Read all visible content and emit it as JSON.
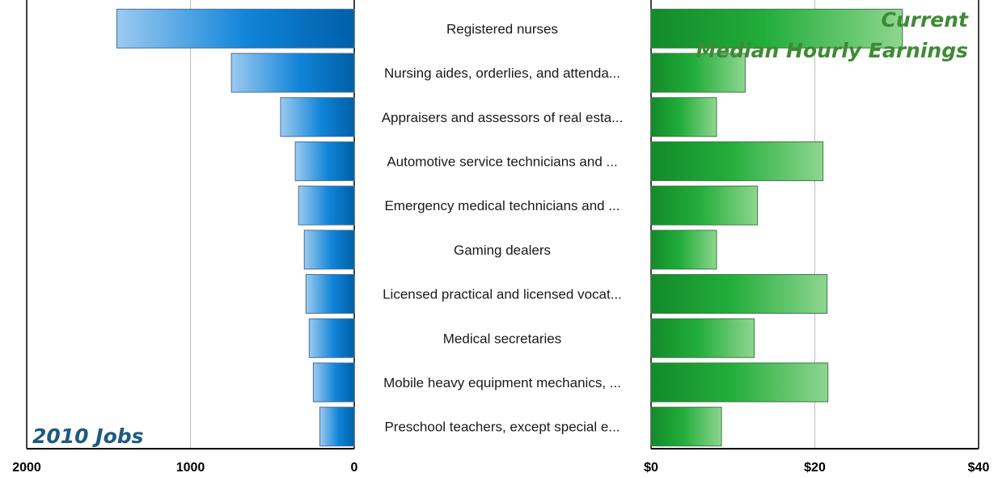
{
  "chart_data": [
    {
      "type": "bar",
      "orientation": "horizontal",
      "direction": "right-to-left",
      "title": "2010 Jobs",
      "categories": [
        "Registered nurses",
        "Nursing aides, orderlies, and attenda...",
        "Appraisers and assessors of real esta...",
        "Automotive service technicians and ...",
        "Emergency medical technicians and ...",
        "Gaming dealers",
        "Licensed practical and licensed vocat...",
        "Medical secretaries",
        "Mobile heavy equipment mechanics, ...",
        "Preschool teachers, except special e..."
      ],
      "values": [
        1450,
        750,
        450,
        360,
        340,
        305,
        295,
        275,
        250,
        210
      ],
      "xlim": [
        0,
        2000
      ],
      "ticks": [
        2000,
        1000,
        0
      ],
      "tick_labels": [
        "2000",
        "1000",
        "0"
      ],
      "grid": true,
      "colors": {
        "dark": "#005fa8",
        "mid": "#1084d8",
        "light": "#9ccaf0",
        "stroke": "#4a6f95"
      }
    },
    {
      "type": "bar",
      "orientation": "horizontal",
      "direction": "left-to-right",
      "title": "Current Median Hourly Earnings",
      "title_lines": [
        "Current",
        "Median Hourly Earnings"
      ],
      "categories": [
        "Registered nurses",
        "Nursing aides, orderlies, and attenda...",
        "Appraisers and assessors of real esta...",
        "Automotive service technicians and ...",
        "Emergency medical technicians and ...",
        "Gaming dealers",
        "Licensed practical and licensed vocat...",
        "Medical secretaries",
        "Mobile heavy equipment mechanics, ...",
        "Preschool teachers, except special e..."
      ],
      "values": [
        30.7,
        11.5,
        8.0,
        21.0,
        13.0,
        8.0,
        21.5,
        12.6,
        21.6,
        8.6
      ],
      "xlim": [
        0,
        40
      ],
      "ticks": [
        0,
        20,
        40
      ],
      "tick_labels": [
        "$0",
        "$20",
        "$40"
      ],
      "grid": true,
      "colors": {
        "dark": "#138a2a",
        "mid": "#22ad3a",
        "light": "#8ed68f",
        "stroke": "#3d7a45"
      }
    }
  ]
}
